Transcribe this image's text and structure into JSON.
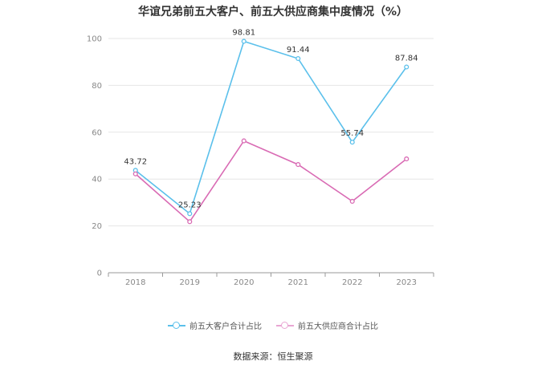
{
  "title": "华谊兄弟前五大客户、前五大供应商集中度情况（%）",
  "source": "数据来源：恒生聚源",
  "colors": {
    "customers": "#5bc0eb",
    "suppliers": "#d96bb4",
    "grid": "#e6e6e6",
    "axis": "#999999"
  },
  "chart_data": {
    "type": "line",
    "title": "华谊兄弟前五大客户、前五大供应商集中度情况（%）",
    "categories": [
      "2018",
      "2019",
      "2020",
      "2021",
      "2022",
      "2023"
    ],
    "ylim": [
      0,
      100
    ],
    "yticks": [
      0,
      20,
      40,
      60,
      80,
      100
    ],
    "grid": true,
    "legend": "bottom",
    "series": [
      {
        "name": "前五大客户合计占比",
        "values": [
          43.72,
          25.23,
          98.81,
          91.44,
          55.74,
          87.84
        ],
        "labels": [
          "43.72",
          "25.23",
          "98.81",
          "91.44",
          "55.74",
          "87.84"
        ],
        "color": "#5bc0eb"
      },
      {
        "name": "前五大供应商合计占比",
        "values": [
          42.2,
          21.8,
          56.3,
          46.2,
          30.5,
          48.6
        ],
        "labels": [],
        "color": "#d96bb4"
      }
    ]
  }
}
